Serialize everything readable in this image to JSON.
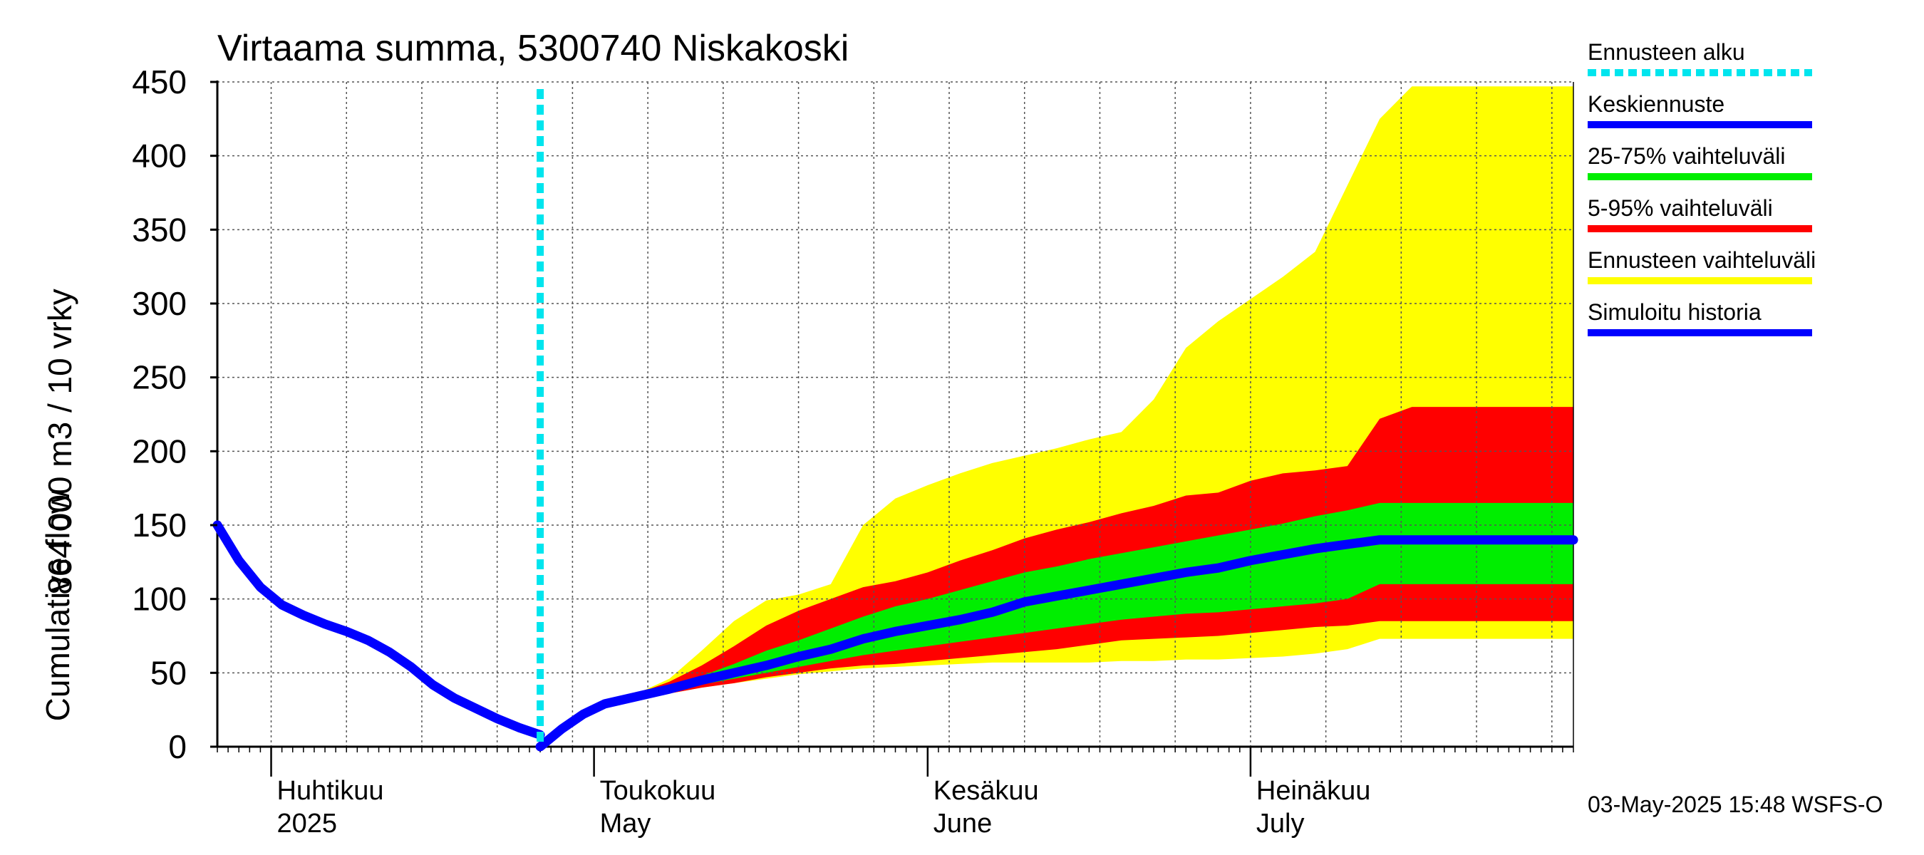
{
  "chart_data": {
    "type": "area",
    "title": "Virtaama summa, 5300740 Niskakoski",
    "ylabel_line1": "864 000 m3 / 10 vrky",
    "ylabel_line2": "Cumulative flow",
    "ylim": [
      0,
      450
    ],
    "y_ticks": [
      0,
      50,
      100,
      150,
      200,
      250,
      300,
      350,
      400,
      450
    ],
    "y_tick_labels": [
      "0",
      "50",
      "100",
      "150",
      "200",
      "250",
      "300",
      "350",
      "400",
      "450"
    ],
    "xlim": [
      "2025-03-27",
      "2025-07-31"
    ],
    "grid": true,
    "legend_placement": "right",
    "forecast_start": "2025-04-26",
    "month_labels": [
      {
        "date": "2025-04-01",
        "fi": "Huhtikuu",
        "en": "2025"
      },
      {
        "date": "2025-05-01",
        "fi": "Toukokuu",
        "en": "May"
      },
      {
        "date": "2025-06-01",
        "fi": "Kesäkuu",
        "en": "June"
      },
      {
        "date": "2025-07-01",
        "fi": "Heinäkuu",
        "en": "July"
      }
    ],
    "timestamp": "03-May-2025 15:48 WSFS-O",
    "colors": {
      "forecast_start": "#00e5ee",
      "median": "#0000ff",
      "band_25_75": "#00ee00",
      "band_5_95": "#ff0000",
      "band_range": "#ffff00",
      "history": "#0000ff",
      "grid": "#555555"
    },
    "legend": [
      {
        "label": "Ennusteen alku",
        "color": "#00e5ee",
        "style": "dotted"
      },
      {
        "label": "Keskiennuste",
        "color": "#0000ff",
        "style": "solid"
      },
      {
        "label": "25-75% vaihteluväli",
        "color": "#00ee00",
        "style": "solid"
      },
      {
        "label": "5-95% vaihteluväli",
        "color": "#ff0000",
        "style": "solid"
      },
      {
        "label": "Ennusteen vaihteluväli",
        "color": "#ffff00",
        "style": "solid"
      },
      {
        "label": "Simuloitu historia",
        "color": "#0000ff",
        "style": "solid"
      }
    ],
    "history": {
      "x": [
        "2025-03-27",
        "2025-03-29",
        "2025-03-31",
        "2025-04-02",
        "2025-04-04",
        "2025-04-06",
        "2025-04-08",
        "2025-04-10",
        "2025-04-12",
        "2025-04-14",
        "2025-04-16",
        "2025-04-18",
        "2025-04-20",
        "2025-04-22",
        "2025-04-24",
        "2025-04-26"
      ],
      "y": [
        150,
        126,
        108,
        96,
        89,
        83,
        78,
        72,
        64,
        54,
        42,
        33,
        26,
        19,
        13,
        8
      ]
    },
    "forecast": {
      "x": [
        "2025-04-26",
        "2025-04-28",
        "2025-04-30",
        "2025-05-02",
        "2025-05-05",
        "2025-05-08",
        "2025-05-11",
        "2025-05-14",
        "2025-05-17",
        "2025-05-20",
        "2025-05-23",
        "2025-05-26",
        "2025-05-29",
        "2025-06-01",
        "2025-06-04",
        "2025-06-07",
        "2025-06-10",
        "2025-06-13",
        "2025-06-16",
        "2025-06-19",
        "2025-06-22",
        "2025-06-25",
        "2025-06-28",
        "2025-07-01",
        "2025-07-04",
        "2025-07-07",
        "2025-07-10",
        "2025-07-13",
        "2025-07-16",
        "2025-07-19",
        "2025-07-22",
        "2025-07-25",
        "2025-07-28",
        "2025-07-31"
      ],
      "range_max": [
        0,
        12,
        22,
        29,
        36,
        46,
        65,
        85,
        99,
        103,
        110,
        150,
        168,
        177,
        185,
        192,
        197,
        202,
        208,
        213,
        235,
        270,
        288,
        303,
        318,
        335,
        380,
        425,
        447,
        447,
        447,
        447,
        447,
        447
      ],
      "p95": [
        0,
        12,
        22,
        29,
        36,
        44,
        55,
        68,
        82,
        92,
        100,
        108,
        112,
        118,
        126,
        133,
        141,
        147,
        152,
        158,
        163,
        170,
        172,
        180,
        185,
        187,
        190,
        222,
        230,
        230,
        230,
        230,
        230,
        230
      ],
      "p75": [
        0,
        12,
        22,
        29,
        35,
        41,
        48,
        56,
        65,
        72,
        80,
        88,
        95,
        100,
        106,
        112,
        118,
        122,
        127,
        131,
        135,
        139,
        143,
        147,
        151,
        156,
        160,
        165,
        165,
        165,
        165,
        165,
        165,
        165
      ],
      "median": [
        0,
        12,
        22,
        29,
        34,
        39,
        45,
        50,
        55,
        61,
        66,
        73,
        78,
        82,
        86,
        91,
        98,
        102,
        106,
        110,
        114,
        118,
        121,
        126,
        130,
        134,
        137,
        140,
        140,
        140,
        140,
        140,
        140,
        140
      ],
      "p25": [
        0,
        12,
        22,
        29,
        33,
        37,
        42,
        46,
        50,
        54,
        58,
        62,
        65,
        68,
        71,
        74,
        77,
        80,
        83,
        86,
        88,
        90,
        91,
        93,
        95,
        97,
        100,
        110,
        110,
        110,
        110,
        110,
        110,
        110
      ],
      "p5": [
        0,
        12,
        22,
        29,
        33,
        36,
        40,
        43,
        47,
        50,
        53,
        55,
        56,
        58,
        60,
        62,
        64,
        66,
        69,
        72,
        73,
        74,
        75,
        77,
        79,
        81,
        82,
        85,
        85,
        85,
        85,
        85,
        85,
        85
      ],
      "range_min": [
        0,
        12,
        22,
        29,
        33,
        36,
        40,
        43,
        46,
        49,
        51,
        53,
        54,
        55,
        56,
        57,
        57,
        57,
        57,
        58,
        58,
        59,
        59,
        60,
        61,
        63,
        66,
        73,
        73,
        73,
        73,
        73,
        73,
        73
      ]
    }
  }
}
